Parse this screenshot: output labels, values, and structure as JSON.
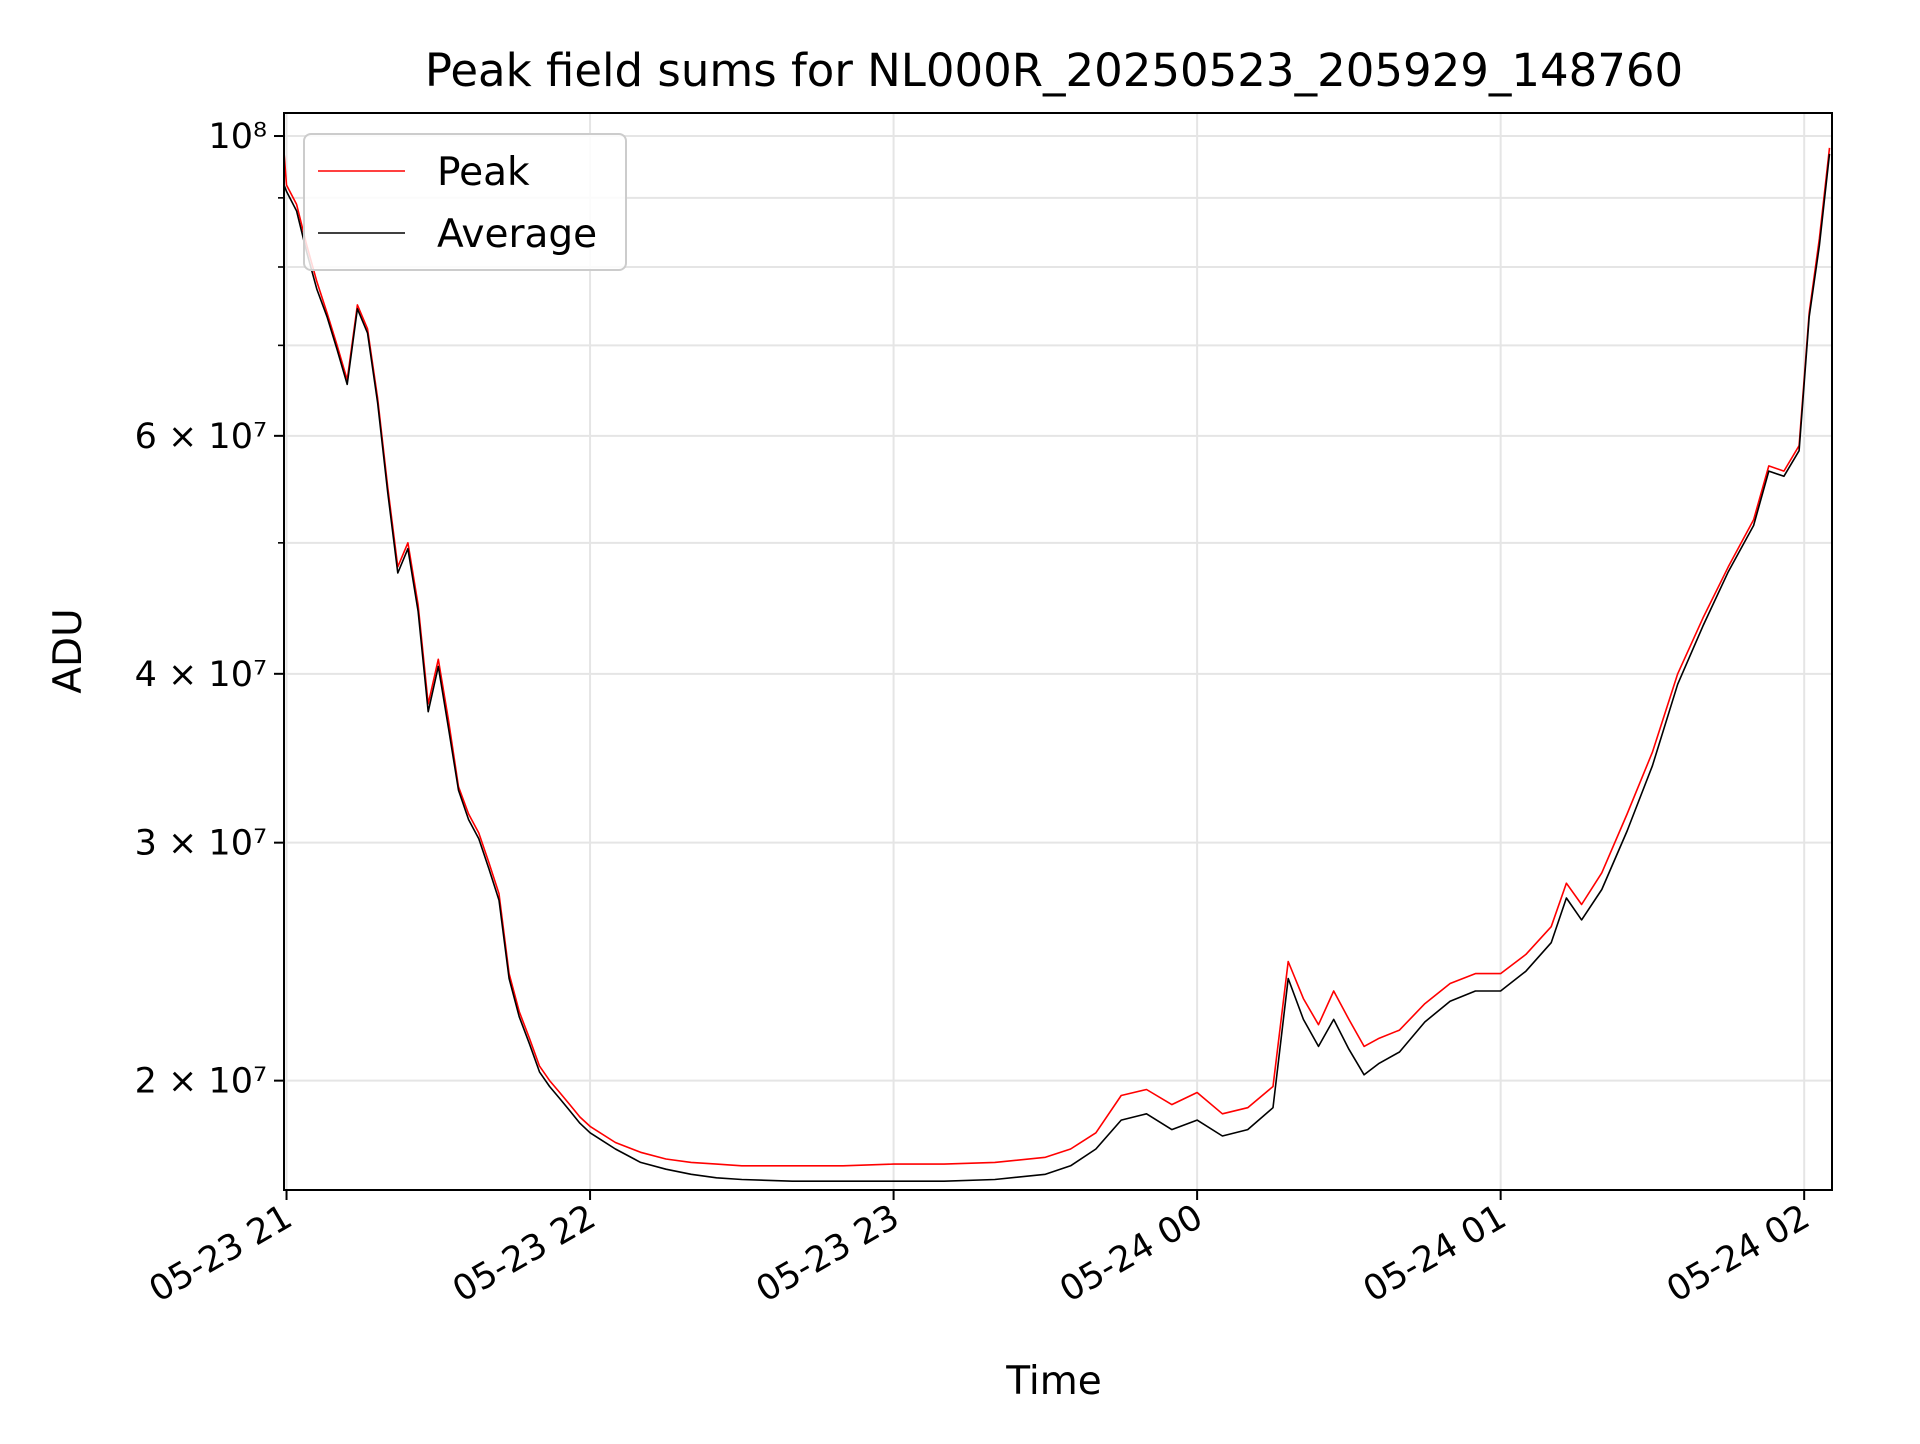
{
  "chart_data": {
    "type": "line",
    "title": "Peak field sums for NL000R_20250523_205929_148760",
    "xlabel": "Time",
    "ylabel": "ADU",
    "y_scale": "log",
    "ylim": [
      16600000,
      104000000
    ],
    "xlim": [
      "05-23 20:59:30",
      "05-24 02:05:30"
    ],
    "grid": true,
    "legend_position": "upper left",
    "x_ticks": [
      {
        "label": "05-23 21",
        "value": "05-23 21:00"
      },
      {
        "label": "05-23 22",
        "value": "05-23 22:00"
      },
      {
        "label": "05-23 23",
        "value": "05-23 23:00"
      },
      {
        "label": "05-24 00",
        "value": "05-24 00:00"
      },
      {
        "label": "05-24 01",
        "value": "05-24 01:00"
      },
      {
        "label": "05-24 02",
        "value": "05-24 02:00"
      }
    ],
    "y_ticks": [
      {
        "label": "2 × 10⁷",
        "value": 20000000
      },
      {
        "label": "3 × 10⁷",
        "value": 30000000
      },
      {
        "label": "4 × 10⁷",
        "value": 40000000
      },
      {
        "label": "6 × 10⁷",
        "value": 60000000
      },
      {
        "label": "10⁸",
        "value": 100000000
      }
    ],
    "y_minor_ticks": [
      50000000,
      70000000,
      80000000,
      90000000
    ],
    "series": [
      {
        "name": "Peak",
        "color": "#ff0000",
        "x": [
          "05-23 20:59",
          "05-23 21:00",
          "05-23 21:02",
          "05-23 21:04",
          "05-23 21:06",
          "05-23 21:08",
          "05-23 21:10",
          "05-23 21:12",
          "05-23 21:14",
          "05-23 21:16",
          "05-23 21:18",
          "05-23 21:20",
          "05-23 21:22",
          "05-23 21:24",
          "05-23 21:26",
          "05-23 21:28",
          "05-23 21:30",
          "05-23 21:32",
          "05-23 21:34",
          "05-23 21:36",
          "05-23 21:38",
          "05-23 21:40",
          "05-23 21:42",
          "05-23 21:44",
          "05-23 21:46",
          "05-23 21:48",
          "05-23 21:50",
          "05-23 21:52",
          "05-23 21:54",
          "05-23 21:56",
          "05-23 21:58",
          "05-23 22:00",
          "05-23 22:05",
          "05-23 22:10",
          "05-23 22:15",
          "05-23 22:20",
          "05-23 22:25",
          "05-23 22:30",
          "05-23 22:40",
          "05-23 22:50",
          "05-23 23:00",
          "05-23 23:10",
          "05-23 23:20",
          "05-23 23:30",
          "05-23 23:35",
          "05-23 23:40",
          "05-23 23:45",
          "05-23 23:50",
          "05-23 23:55",
          "05-24 00:00",
          "05-24 00:05",
          "05-24 00:10",
          "05-24 00:15",
          "05-24 00:18",
          "05-24 00:21",
          "05-24 00:24",
          "05-24 00:27",
          "05-24 00:30",
          "05-24 00:33",
          "05-24 00:36",
          "05-24 00:40",
          "05-24 00:45",
          "05-24 00:50",
          "05-24 00:55",
          "05-24 01:00",
          "05-24 01:05",
          "05-24 01:10",
          "05-24 01:13",
          "05-24 01:16",
          "05-24 01:20",
          "05-24 01:25",
          "05-24 01:30",
          "05-24 01:35",
          "05-24 01:40",
          "05-24 01:45",
          "05-24 01:50",
          "05-24 01:53",
          "05-24 01:56",
          "05-24 01:59",
          "05-24 02:01",
          "05-24 02:03",
          "05-24 02:05"
        ],
        "y": [
          103000000,
          92000000,
          89000000,
          83000000,
          78000000,
          74000000,
          70000000,
          66000000,
          75000000,
          72000000,
          64000000,
          55000000,
          48000000,
          50000000,
          45000000,
          38000000,
          41000000,
          37000000,
          33000000,
          31500000,
          30500000,
          29000000,
          27500000,
          24000000,
          22500000,
          21500000,
          20500000,
          20000000,
          19600000,
          19200000,
          18800000,
          18500000,
          18000000,
          17700000,
          17500000,
          17400000,
          17350000,
          17300000,
          17300000,
          17300000,
          17350000,
          17350000,
          17400000,
          17550000,
          17800000,
          18300000,
          19500000,
          19700000,
          19200000,
          19600000,
          18900000,
          19100000,
          19800000,
          24500000,
          23000000,
          22000000,
          23300000,
          22200000,
          21200000,
          21500000,
          21800000,
          22800000,
          23600000,
          24000000,
          24000000,
          24800000,
          26000000,
          28000000,
          27000000,
          28500000,
          31500000,
          35000000,
          40000000,
          44000000,
          48000000,
          52000000,
          57000000,
          56500000,
          59000000,
          74000000,
          84000000,
          98000000
        ]
      },
      {
        "name": "Average",
        "color": "#000000",
        "x": [
          "05-23 20:59",
          "05-23 21:00",
          "05-23 21:02",
          "05-23 21:04",
          "05-23 21:06",
          "05-23 21:08",
          "05-23 21:10",
          "05-23 21:12",
          "05-23 21:14",
          "05-23 21:16",
          "05-23 21:18",
          "05-23 21:20",
          "05-23 21:22",
          "05-23 21:24",
          "05-23 21:26",
          "05-23 21:28",
          "05-23 21:30",
          "05-23 21:32",
          "05-23 21:34",
          "05-23 21:36",
          "05-23 21:38",
          "05-23 21:40",
          "05-23 21:42",
          "05-23 21:44",
          "05-23 21:46",
          "05-23 21:48",
          "05-23 21:50",
          "05-23 21:52",
          "05-23 21:54",
          "05-23 21:56",
          "05-23 21:58",
          "05-23 22:00",
          "05-23 22:05",
          "05-23 22:10",
          "05-23 22:15",
          "05-23 22:20",
          "05-23 22:25",
          "05-23 22:30",
          "05-23 22:40",
          "05-23 22:50",
          "05-23 23:00",
          "05-23 23:10",
          "05-23 23:20",
          "05-23 23:30",
          "05-23 23:35",
          "05-23 23:40",
          "05-23 23:45",
          "05-23 23:50",
          "05-23 23:55",
          "05-24 00:00",
          "05-24 00:05",
          "05-24 00:10",
          "05-24 00:15",
          "05-24 00:18",
          "05-24 00:21",
          "05-24 00:24",
          "05-24 00:27",
          "05-24 00:30",
          "05-24 00:33",
          "05-24 00:36",
          "05-24 00:40",
          "05-24 00:45",
          "05-24 00:50",
          "05-24 00:55",
          "05-24 01:00",
          "05-24 01:05",
          "05-24 01:10",
          "05-24 01:13",
          "05-24 01:16",
          "05-24 01:20",
          "05-24 01:25",
          "05-24 01:30",
          "05-24 01:35",
          "05-24 01:40",
          "05-24 01:45",
          "05-24 01:50",
          "05-24 01:53",
          "05-24 01:56",
          "05-24 01:59",
          "05-24 02:01",
          "05-24 02:03",
          "05-24 02:05"
        ],
        "y": [
          93000000,
          91000000,
          88000000,
          82000000,
          77000000,
          73500000,
          69500000,
          65500000,
          74500000,
          71500000,
          63500000,
          54500000,
          47500000,
          49500000,
          44500000,
          37500000,
          40500000,
          36500000,
          32800000,
          31200000,
          30200000,
          28700000,
          27200000,
          23800000,
          22300000,
          21300000,
          20300000,
          19800000,
          19400000,
          19000000,
          18600000,
          18300000,
          17800000,
          17400000,
          17200000,
          17050000,
          16950000,
          16900000,
          16850000,
          16850000,
          16850000,
          16850000,
          16900000,
          17050000,
          17300000,
          17800000,
          18700000,
          18900000,
          18400000,
          18700000,
          18200000,
          18400000,
          19100000,
          23800000,
          22200000,
          21200000,
          22200000,
          21100000,
          20200000,
          20600000,
          21000000,
          22100000,
          22900000,
          23300000,
          23300000,
          24100000,
          25300000,
          27300000,
          26300000,
          27700000,
          30600000,
          34200000,
          39300000,
          43400000,
          47600000,
          51500000,
          56500000,
          56000000,
          58500000,
          73500000,
          83000000,
          97000000
        ]
      }
    ]
  }
}
